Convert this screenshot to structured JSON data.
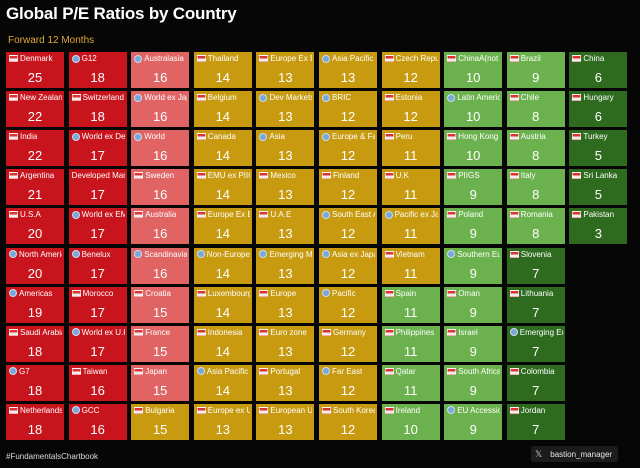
{
  "title": "Global P/E Ratios by Country",
  "subtitle": "Forward 12 Months",
  "footer": {
    "hashtag": "#FundamentalsChartbook",
    "x_icon_glyph": "𝕏",
    "handle": "bastion_manager"
  },
  "colors": {
    "dark_red": "#c8141c",
    "light_red": "#e06464",
    "gold": "#c79a10",
    "light_green": "#6bb24e",
    "dark_green": "#2e6b1f"
  },
  "chart_data": {
    "type": "table",
    "layout": "column-major grid, 10 cells per column, sorted by P/E descending",
    "rows_per_column": 10,
    "columns": 10,
    "cells": [
      {
        "label": "Denmark",
        "value": 25,
        "color": "dark_red",
        "icon": "flag"
      },
      {
        "label": "New Zealand",
        "value": 22,
        "color": "dark_red",
        "icon": "flag"
      },
      {
        "label": "India",
        "value": 22,
        "color": "dark_red",
        "icon": "flag"
      },
      {
        "label": "Argentina",
        "value": 21,
        "color": "dark_red",
        "icon": "flag"
      },
      {
        "label": "U.S.A",
        "value": 20,
        "color": "dark_red",
        "icon": "flag"
      },
      {
        "label": "North America",
        "value": 20,
        "color": "dark_red",
        "icon": "globe"
      },
      {
        "label": "Americas",
        "value": 19,
        "color": "dark_red",
        "icon": "globe"
      },
      {
        "label": "Saudi Arabia",
        "value": 18,
        "color": "dark_red",
        "icon": "flag"
      },
      {
        "label": "G7",
        "value": 18,
        "color": "dark_red",
        "icon": "globe"
      },
      {
        "label": "Netherlands",
        "value": 18,
        "color": "dark_red",
        "icon": "flag"
      },
      {
        "label": "G12",
        "value": 18,
        "color": "dark_red",
        "icon": "globe"
      },
      {
        "label": "Switzerland",
        "value": 18,
        "color": "dark_red",
        "icon": "flag"
      },
      {
        "label": "World ex Dev",
        "value": 17,
        "color": "dark_red",
        "icon": "globe"
      },
      {
        "label": "Developed Mark",
        "value": 17,
        "color": "dark_red",
        "icon": "none"
      },
      {
        "label": "World ex EMU",
        "value": 17,
        "color": "dark_red",
        "icon": "globe"
      },
      {
        "label": "Benelux",
        "value": 17,
        "color": "dark_red",
        "icon": "globe"
      },
      {
        "label": "Morocco",
        "value": 17,
        "color": "dark_red",
        "icon": "flag"
      },
      {
        "label": "World ex U.K",
        "value": 17,
        "color": "dark_red",
        "icon": "globe"
      },
      {
        "label": "Taiwan",
        "value": 16,
        "color": "dark_red",
        "icon": "flag"
      },
      {
        "label": "GCC",
        "value": 16,
        "color": "dark_red",
        "icon": "globe"
      },
      {
        "label": "Australasia",
        "value": 16,
        "color": "light_red",
        "icon": "globe"
      },
      {
        "label": "World ex Japa",
        "value": 16,
        "color": "light_red",
        "icon": "globe"
      },
      {
        "label": "World",
        "value": 16,
        "color": "light_red",
        "icon": "globe"
      },
      {
        "label": "Sweden",
        "value": 16,
        "color": "light_red",
        "icon": "flag"
      },
      {
        "label": "Australia",
        "value": 16,
        "color": "light_red",
        "icon": "flag"
      },
      {
        "label": "Scandinavia",
        "value": 16,
        "color": "light_red",
        "icon": "globe"
      },
      {
        "label": "Croatia",
        "value": 15,
        "color": "light_red",
        "icon": "flag"
      },
      {
        "label": "France",
        "value": 15,
        "color": "light_red",
        "icon": "flag"
      },
      {
        "label": "Japan",
        "value": 15,
        "color": "light_red",
        "icon": "flag"
      },
      {
        "label": "Bulgaria",
        "value": 15,
        "color": "gold",
        "icon": "flag"
      },
      {
        "label": "Thailand",
        "value": 14,
        "color": "gold",
        "icon": "flag"
      },
      {
        "label": "Belgium",
        "value": 14,
        "color": "gold",
        "icon": "flag"
      },
      {
        "label": "Canada",
        "value": 14,
        "color": "gold",
        "icon": "flag"
      },
      {
        "label": "EMU ex PIIGS",
        "value": 14,
        "color": "gold",
        "icon": "flag"
      },
      {
        "label": "Europe Ex EM",
        "value": 14,
        "color": "gold",
        "icon": "flag"
      },
      {
        "label": "Non-Europe",
        "value": 14,
        "color": "gold",
        "icon": "globe"
      },
      {
        "label": "Luxembourg",
        "value": 14,
        "color": "gold",
        "icon": "flag"
      },
      {
        "label": "Indonesia",
        "value": 14,
        "color": "gold",
        "icon": "flag"
      },
      {
        "label": "Asia Pacific",
        "value": 14,
        "color": "gold",
        "icon": "globe"
      },
      {
        "label": "Europe ex UK",
        "value": 13,
        "color": "gold",
        "icon": "flag"
      },
      {
        "label": "Europe Ex EM",
        "value": 13,
        "color": "gold",
        "icon": "flag"
      },
      {
        "label": "Dev Markets",
        "value": 13,
        "color": "gold",
        "icon": "globe"
      },
      {
        "label": "Asia",
        "value": 13,
        "color": "gold",
        "icon": "globe"
      },
      {
        "label": "Mexico",
        "value": 13,
        "color": "gold",
        "icon": "flag"
      },
      {
        "label": "U.A.E",
        "value": 13,
        "color": "gold",
        "icon": "flag"
      },
      {
        "label": "Emerging Ma",
        "value": 13,
        "color": "gold",
        "icon": "globe"
      },
      {
        "label": "Europe",
        "value": 13,
        "color": "gold",
        "icon": "flag"
      },
      {
        "label": "Euro zone",
        "value": 13,
        "color": "gold",
        "icon": "flag"
      },
      {
        "label": "Portugal",
        "value": 13,
        "color": "gold",
        "icon": "flag"
      },
      {
        "label": "European Un",
        "value": 13,
        "color": "gold",
        "icon": "flag"
      },
      {
        "label": "Asia Pacific e",
        "value": 13,
        "color": "gold",
        "icon": "globe"
      },
      {
        "label": "BRIC",
        "value": 12,
        "color": "gold",
        "icon": "globe"
      },
      {
        "label": "Europe & Far",
        "value": 12,
        "color": "gold",
        "icon": "globe"
      },
      {
        "label": "Finland",
        "value": 12,
        "color": "gold",
        "icon": "flag"
      },
      {
        "label": "South East As",
        "value": 12,
        "color": "gold",
        "icon": "globe"
      },
      {
        "label": "Asia ex Japan",
        "value": 12,
        "color": "gold",
        "icon": "globe"
      },
      {
        "label": "Pacific",
        "value": 12,
        "color": "gold",
        "icon": "globe"
      },
      {
        "label": "Germany",
        "value": 12,
        "color": "gold",
        "icon": "flag"
      },
      {
        "label": "Far East",
        "value": 12,
        "color": "gold",
        "icon": "globe"
      },
      {
        "label": "South Korea",
        "value": 12,
        "color": "gold",
        "icon": "flag"
      },
      {
        "label": "Czech Repub",
        "value": 12,
        "color": "gold",
        "icon": "flag"
      },
      {
        "label": "Estonia",
        "value": 12,
        "color": "gold",
        "icon": "flag"
      },
      {
        "label": "Peru",
        "value": 11,
        "color": "gold",
        "icon": "flag"
      },
      {
        "label": "U.K",
        "value": 11,
        "color": "gold",
        "icon": "flag"
      },
      {
        "label": "Pacific ex Jap",
        "value": 11,
        "color": "gold",
        "icon": "globe"
      },
      {
        "label": "Vietnam",
        "value": 11,
        "color": "gold",
        "icon": "flag"
      },
      {
        "label": "Spain",
        "value": 11,
        "color": "light_green",
        "icon": "flag"
      },
      {
        "label": "Philippines",
        "value": 11,
        "color": "light_green",
        "icon": "flag"
      },
      {
        "label": "Qatar",
        "value": 11,
        "color": "light_green",
        "icon": "flag"
      },
      {
        "label": "Ireland",
        "value": 10,
        "color": "light_green",
        "icon": "flag"
      },
      {
        "label": "ChinaA(not in",
        "value": 10,
        "color": "light_green",
        "icon": "flag"
      },
      {
        "label": "Latin America",
        "value": 10,
        "color": "light_green",
        "icon": "globe"
      },
      {
        "label": "Hong Kong",
        "value": 10,
        "color": "light_green",
        "icon": "flag"
      },
      {
        "label": "PIIGS",
        "value": 9,
        "color": "light_green",
        "icon": "flag"
      },
      {
        "label": "Poland",
        "value": 9,
        "color": "light_green",
        "icon": "flag"
      },
      {
        "label": "Southern Eur",
        "value": 9,
        "color": "light_green",
        "icon": "globe"
      },
      {
        "label": "Oman",
        "value": 9,
        "color": "light_green",
        "icon": "flag"
      },
      {
        "label": "Israel",
        "value": 9,
        "color": "light_green",
        "icon": "flag"
      },
      {
        "label": "South Africa",
        "value": 9,
        "color": "light_green",
        "icon": "flag"
      },
      {
        "label": "EU Accession",
        "value": 9,
        "color": "light_green",
        "icon": "globe"
      },
      {
        "label": "Brazil",
        "value": 9,
        "color": "light_green",
        "icon": "flag"
      },
      {
        "label": "Chile",
        "value": 8,
        "color": "light_green",
        "icon": "flag"
      },
      {
        "label": "Austria",
        "value": 8,
        "color": "light_green",
        "icon": "flag"
      },
      {
        "label": "Italy",
        "value": 8,
        "color": "light_green",
        "icon": "flag"
      },
      {
        "label": "Romania",
        "value": 8,
        "color": "light_green",
        "icon": "flag"
      },
      {
        "label": "Slovenia",
        "value": 7,
        "color": "dark_green",
        "icon": "flag"
      },
      {
        "label": "Lithuania",
        "value": 7,
        "color": "dark_green",
        "icon": "flag"
      },
      {
        "label": "Emerging Eur",
        "value": 7,
        "color": "dark_green",
        "icon": "globe"
      },
      {
        "label": "Colombia",
        "value": 7,
        "color": "dark_green",
        "icon": "flag"
      },
      {
        "label": "Jordan",
        "value": 7,
        "color": "dark_green",
        "icon": "flag"
      },
      {
        "label": "China",
        "value": 6,
        "color": "dark_green",
        "icon": "flag"
      },
      {
        "label": "Hungary",
        "value": 6,
        "color": "dark_green",
        "icon": "flag"
      },
      {
        "label": "Turkey",
        "value": 5,
        "color": "dark_green",
        "icon": "flag"
      },
      {
        "label": "Sri Lanka",
        "value": 5,
        "color": "dark_green",
        "icon": "flag"
      },
      {
        "label": "Pakistan",
        "value": 3,
        "color": "dark_green",
        "icon": "flag"
      }
    ]
  }
}
